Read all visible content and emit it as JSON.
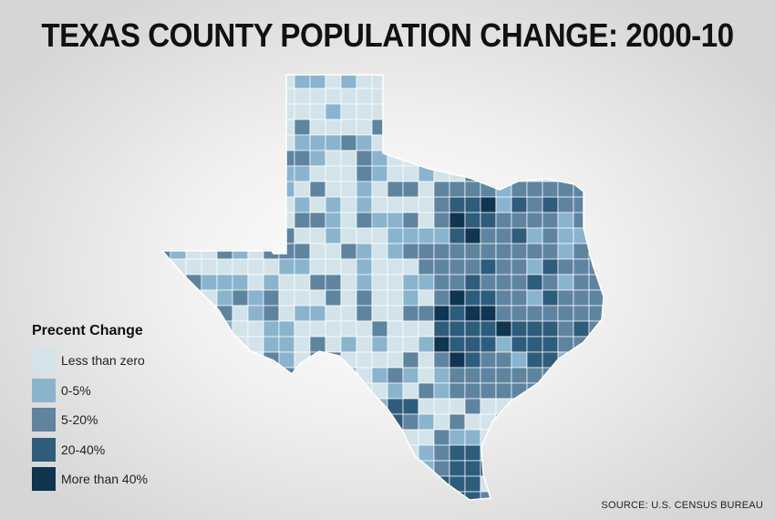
{
  "title": "TEXAS COUNTY POPULATION CHANGE: 2000-10",
  "legend": {
    "title": "Precent Change",
    "items": [
      {
        "label": "Less than zero",
        "color": "#d2e4ea"
      },
      {
        "label": "0-5%",
        "color": "#8ab4ce"
      },
      {
        "label": "5-20%",
        "color": "#5e84a0"
      },
      {
        "label": "20-40%",
        "color": "#2e5c7b"
      },
      {
        "label": "More than 40%",
        "color": "#0f3550"
      }
    ]
  },
  "source": "SOURCE: U.S. CENSUS BUREAU"
}
